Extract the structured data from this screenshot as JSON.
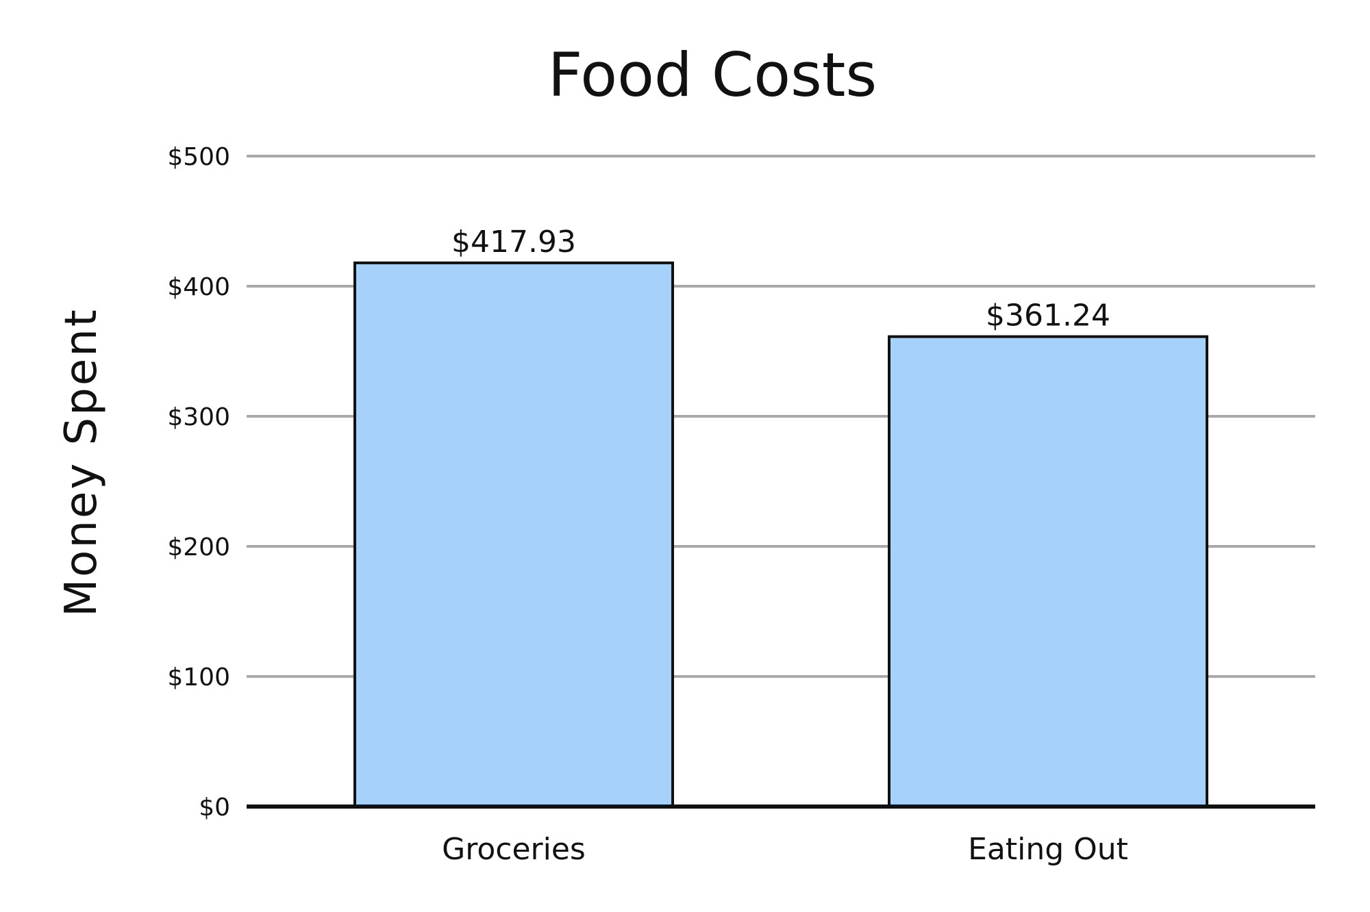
{
  "chart_data": {
    "type": "bar",
    "title": "Food Costs",
    "xlabel": "",
    "ylabel": "Money Spent",
    "categories": [
      "Groceries",
      "Eating Out"
    ],
    "values": [
      417.93,
      361.24
    ],
    "value_labels": [
      "$417.93",
      "$361.24"
    ],
    "yticks": [
      0,
      100,
      200,
      300,
      400,
      500
    ],
    "ytick_labels": [
      "$0",
      "$100",
      "$200",
      "$300",
      "$400",
      "$500"
    ],
    "ylim": [
      0,
      500
    ],
    "grid": true,
    "legend": "none",
    "colors": {
      "bar": "#a6d1fa",
      "grid": "#a9a9a9",
      "axis": "#111111"
    }
  }
}
